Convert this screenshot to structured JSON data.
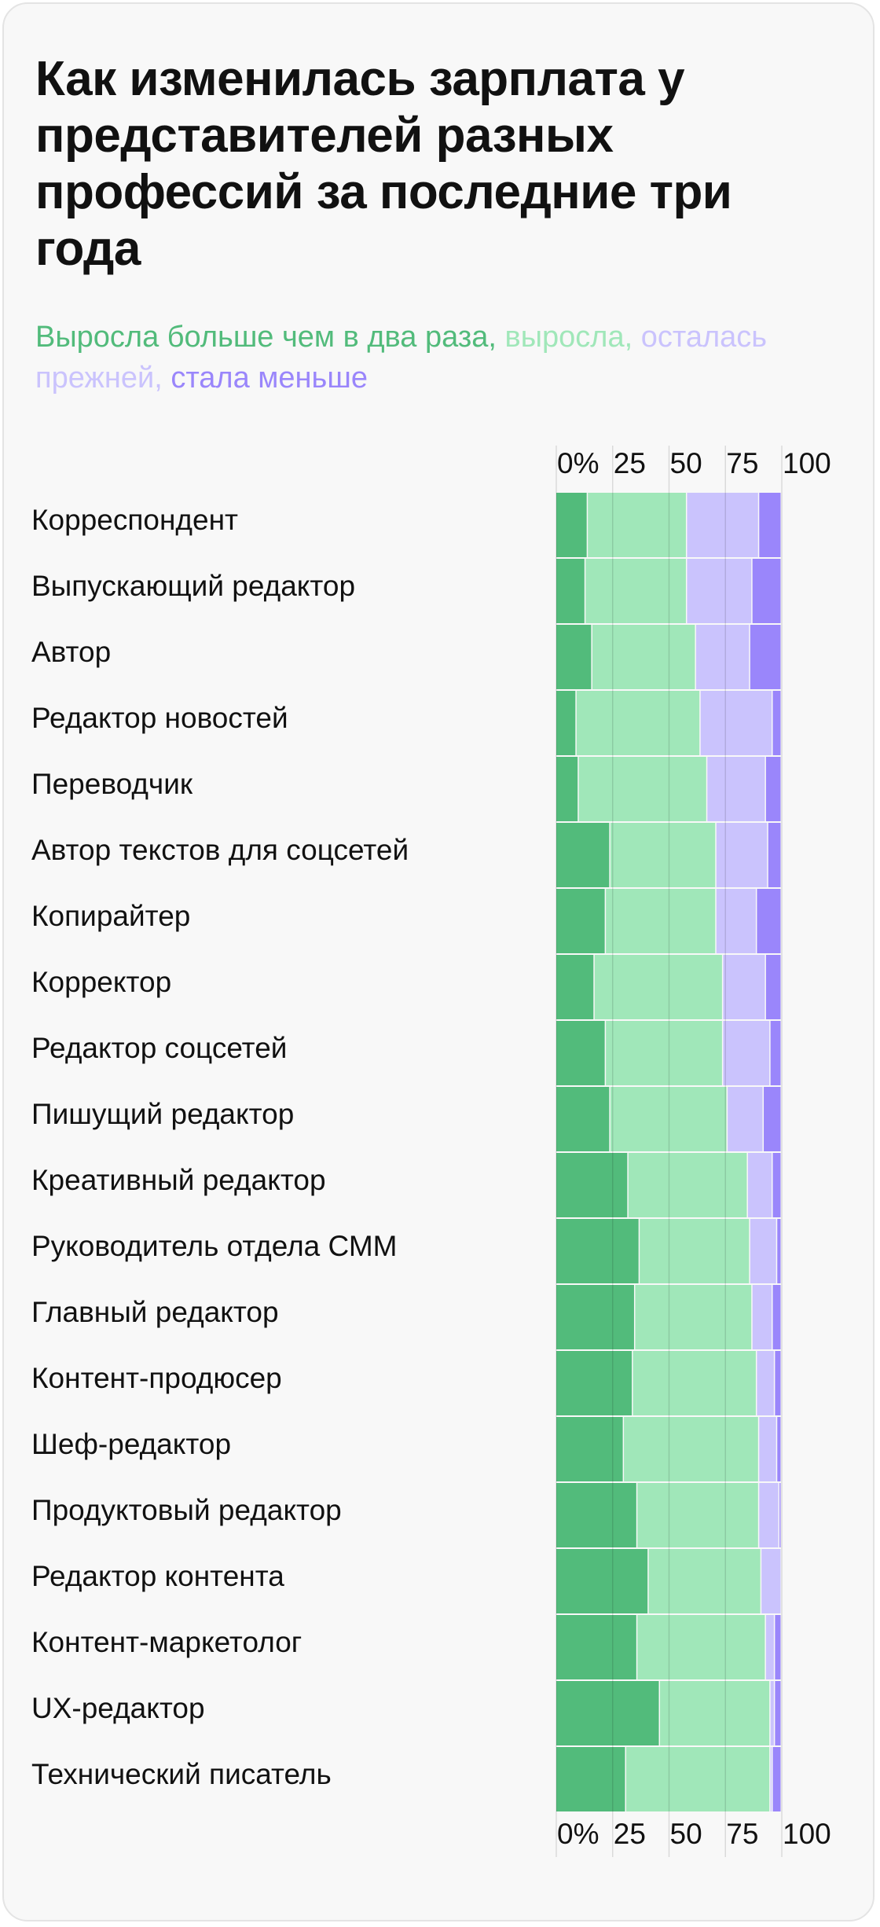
{
  "chart_data": {
    "type": "bar",
    "orientation": "horizontal",
    "stacked": true,
    "title": "Как изменилась зарплата у представителей разных профессий за последние три года",
    "legend": [
      {
        "label": "Выросла больше чем в два раза",
        "separator": ", ",
        "color": "#52bb7b"
      },
      {
        "label": "выросла",
        "separator": ", ",
        "color": "#a0e7b9"
      },
      {
        "label": "осталась прежней",
        "separator": ", ",
        "color": "#cac3fd"
      },
      {
        "label": "стала меньше",
        "separator": "",
        "color": "#9a86fb"
      }
    ],
    "legend_position": "top",
    "x_ticks": [
      "0%",
      "25",
      "50",
      "75",
      "100"
    ],
    "xlim": [
      0,
      100
    ],
    "grid": true,
    "categories": [
      "Корреспондент",
      "Выпускающий редактор",
      "Автор",
      "Редактор новостей",
      "Переводчик",
      "Автор текстов для соцсетей",
      "Копирайтер",
      "Корректор",
      "Редактор соцсетей",
      "Пишущий редактор",
      "Креативный редактор",
      "Руководитель отдела СММ",
      "Главный редактор",
      "Контент-продюсер",
      "Шеф-редактор",
      "Продуктовый редактор",
      "Редактор контента",
      "Контент-маркетолог",
      "UX-редактор",
      "Технический писатель"
    ],
    "series": [
      {
        "name": "Выросла больше чем в два раза",
        "color": "#52bb7b",
        "values": [
          14,
          13,
          16,
          9,
          10,
          24,
          22,
          17,
          22,
          24,
          32,
          37,
          35,
          34,
          30,
          36,
          41,
          36,
          46,
          31
        ]
      },
      {
        "name": "выросла",
        "color": "#a0e7b9",
        "values": [
          44,
          45,
          46,
          55,
          57,
          47,
          49,
          57,
          52,
          52,
          53,
          49,
          52,
          55,
          60,
          54,
          50,
          57,
          49,
          64
        ]
      },
      {
        "name": "осталась прежней",
        "color": "#cac3fd",
        "values": [
          32,
          29,
          24,
          32,
          26,
          23,
          18,
          19,
          21,
          16,
          11,
          12,
          9,
          8,
          8,
          9,
          9,
          4,
          2,
          1
        ]
      },
      {
        "name": "стала меньше",
        "color": "#9a86fb",
        "values": [
          10,
          13,
          14,
          4,
          7,
          6,
          11,
          7,
          5,
          8,
          4,
          2,
          4,
          3,
          2,
          1,
          0,
          3,
          3,
          4
        ]
      }
    ]
  }
}
